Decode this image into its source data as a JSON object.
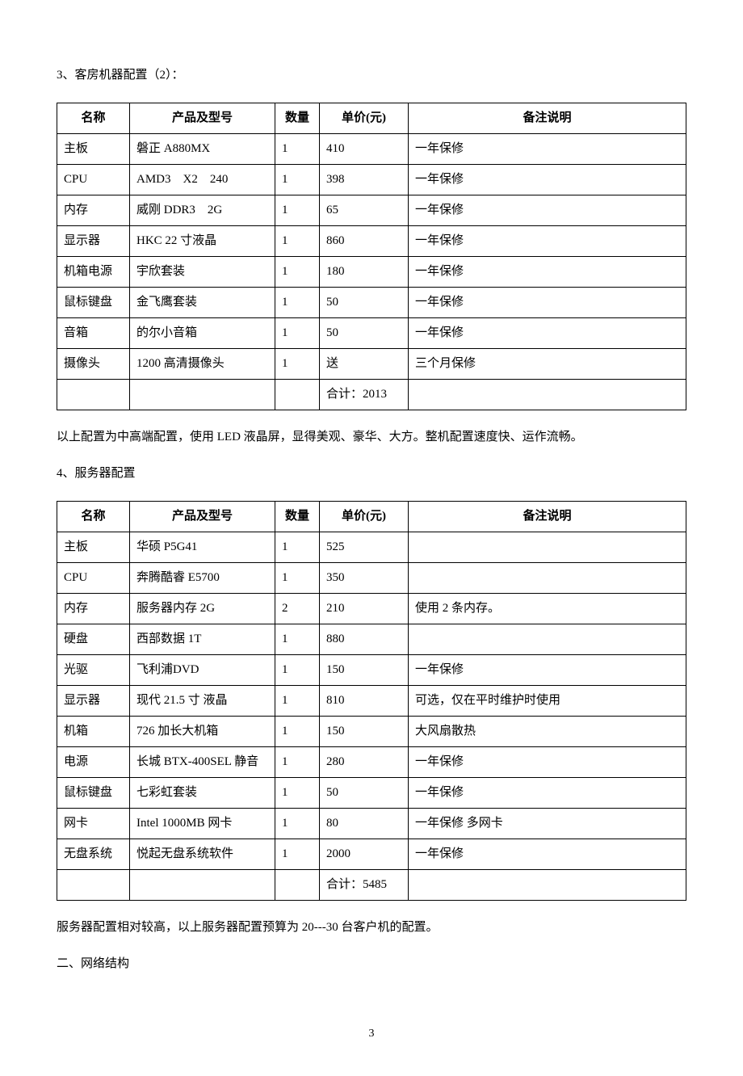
{
  "section1": {
    "title": "3、客房机器配置（2）：",
    "table": {
      "headers": [
        "名称",
        "产品及型号",
        "数量",
        "单价(元)",
        "备注说明"
      ],
      "rows": [
        [
          "主板",
          "磐正 A880MX",
          "1",
          "410",
          "一年保修"
        ],
        [
          "CPU",
          "AMD3　X2　240",
          "1",
          "398",
          "一年保修"
        ],
        [
          "内存",
          "威刚 DDR3　2G",
          "1",
          "65",
          "一年保修"
        ],
        [
          "显示器",
          "HKC 22 寸液晶",
          "1",
          "860",
          "一年保修"
        ],
        [
          "机箱电源",
          "宇欣套装",
          "1",
          "180",
          "一年保修"
        ],
        [
          "鼠标键盘",
          "金飞鹰套装",
          "1",
          "50",
          "一年保修"
        ],
        [
          "音箱",
          "的尔小音箱",
          "1",
          "50",
          "一年保修"
        ],
        [
          "摄像头",
          "1200 高清摄像头",
          "1",
          "送",
          "三个月保修"
        ],
        [
          "",
          "",
          "",
          "合计：2013",
          ""
        ]
      ]
    },
    "note": "以上配置为中高端配置，使用 LED 液晶屏，显得美观、豪华、大方。整机配置速度快、运作流畅。"
  },
  "section2": {
    "title": "4、服务器配置",
    "table": {
      "headers": [
        "名称",
        "产品及型号",
        "数量",
        "单价(元)",
        "备注说明"
      ],
      "rows": [
        [
          "主板",
          "华硕 P5G41",
          "1",
          "525",
          ""
        ],
        [
          "CPU",
          "奔腾酷睿 E5700",
          "1",
          "350",
          ""
        ],
        [
          "内存",
          "服务器内存 2G",
          "2",
          "210",
          "使用 2 条内存。"
        ],
        [
          "硬盘",
          "西部数据 1T",
          "1",
          "880",
          ""
        ],
        [
          "光驱",
          "飞利浦DVD",
          "1",
          "150",
          "一年保修"
        ],
        [
          "显示器",
          "现代 21.5 寸 液晶",
          "1",
          "810",
          "可选，仅在平时维护时使用"
        ],
        [
          "机箱",
          "726 加长大机箱",
          "1",
          "150",
          "大风扇散热"
        ],
        [
          "电源",
          "长城 BTX-400SEL 静音",
          "1",
          "280",
          "一年保修"
        ],
        [
          "鼠标键盘",
          "七彩虹套装",
          "1",
          "50",
          "一年保修"
        ],
        [
          "网卡",
          "Intel 1000MB 网卡",
          "1",
          "80",
          "一年保修 多网卡"
        ],
        [
          "无盘系统",
          "悦起无盘系统软件",
          "1",
          "2000",
          "一年保修"
        ],
        [
          "",
          "",
          "",
          "合计：5485",
          ""
        ]
      ]
    },
    "note": "服务器配置相对较高，以上服务器配置预算为 20---30 台客户机的配置。"
  },
  "section3": {
    "title": "二、网络结构"
  },
  "pageNumber": "3"
}
